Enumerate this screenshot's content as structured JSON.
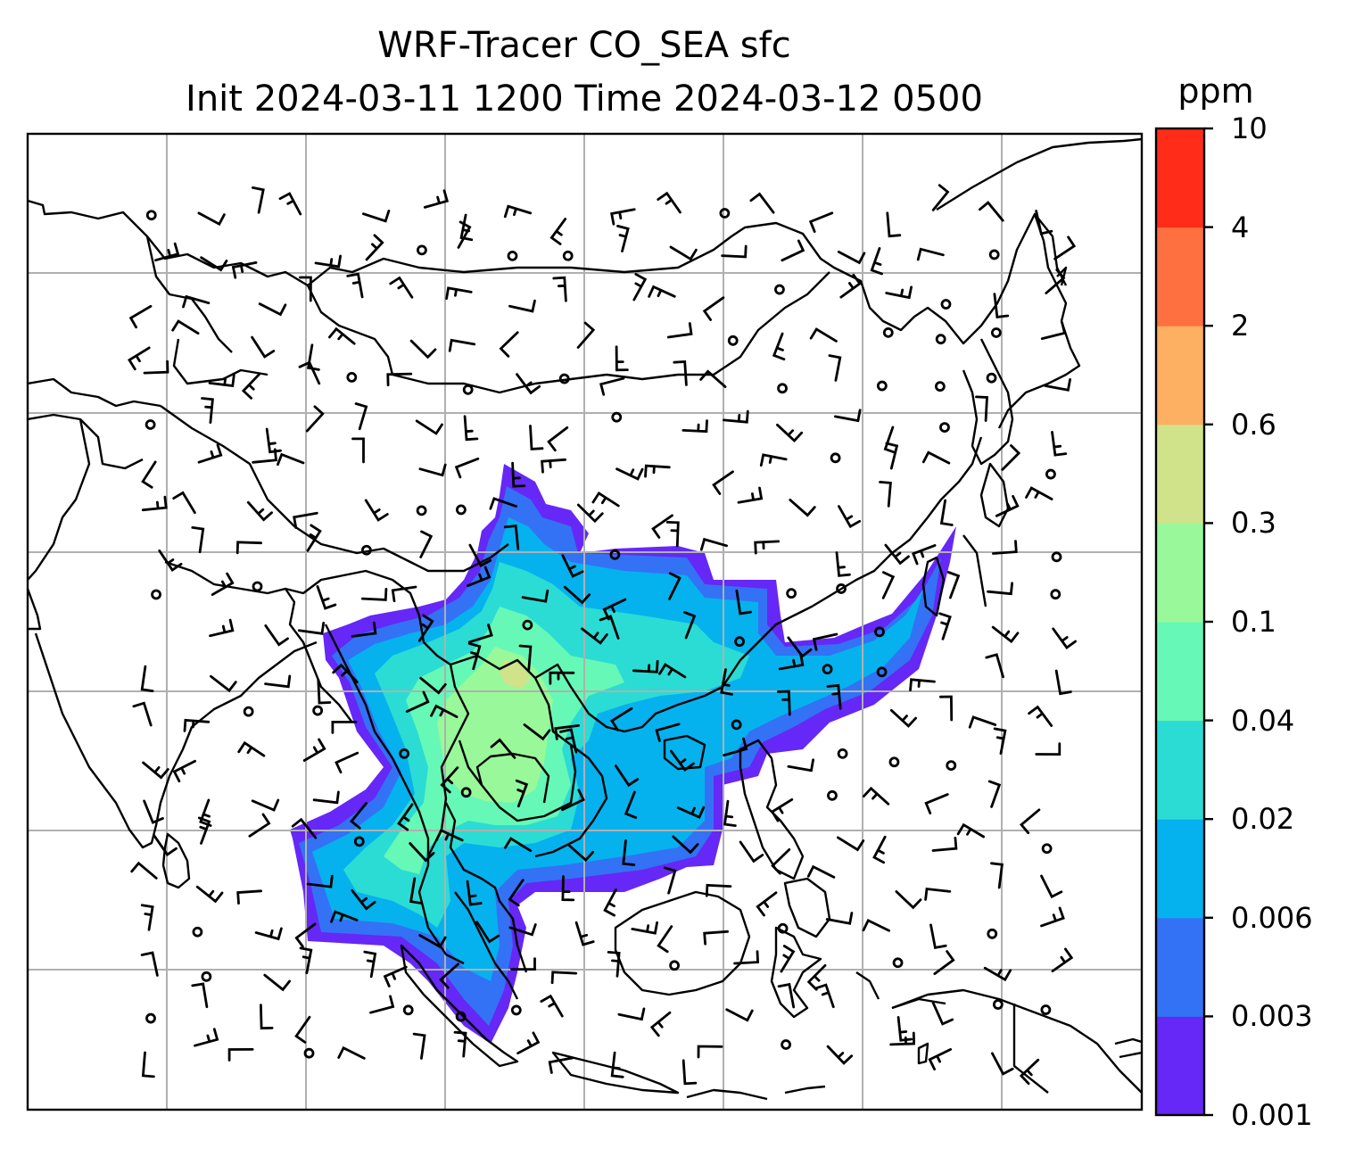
{
  "title": {
    "line1": "WRF-Tracer CO_SEA sfc",
    "line2": "Init 2024-03-11 1200 Time 2024-03-12 0500"
  },
  "colorbar": {
    "units": "ppm",
    "levels": [
      "0.001",
      "0.003",
      "0.006",
      "0.02",
      "0.04",
      "0.1",
      "0.3",
      "0.6",
      "2",
      "4",
      "10"
    ],
    "colors": [
      "#6528f6",
      "#3372f4",
      "#05b2ee",
      "#2bdcd4",
      "#66f8b6",
      "#99f89a",
      "#d0e38a",
      "#fdaf62",
      "#fe7040",
      "#fe2c19"
    ]
  },
  "map": {
    "gridline_color": "#b0b0b0",
    "coastline_color": "#000000",
    "plume_color_order": [
      "0.001",
      "0.003",
      "0.006",
      "0.02",
      "0.04",
      "0.1",
      "0.3"
    ]
  }
}
